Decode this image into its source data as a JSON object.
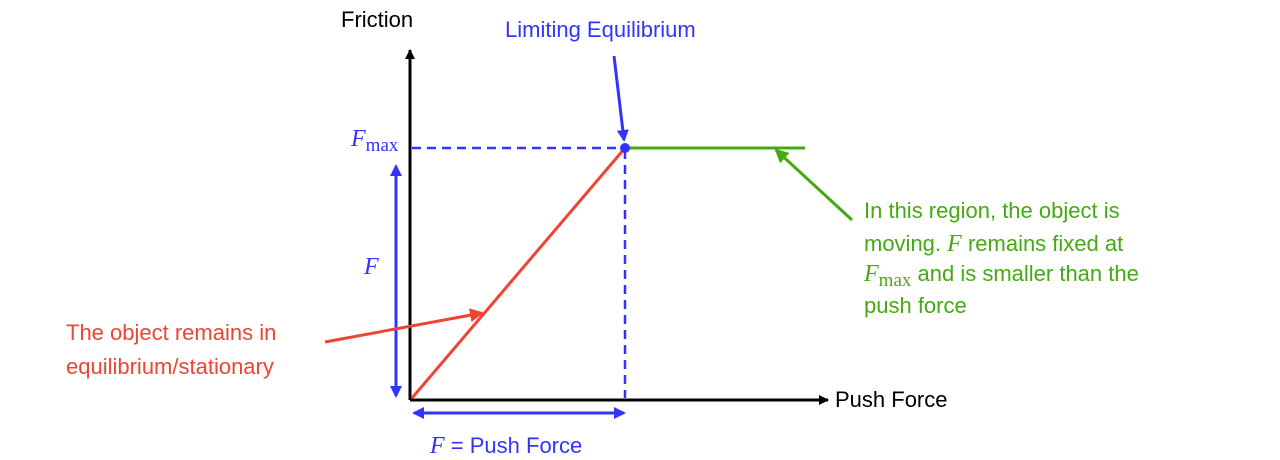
{
  "axes": {
    "y_label": "Friction",
    "x_label": "Push Force"
  },
  "annotations": {
    "limiting": "Limiting Equilibrium",
    "fmax_symbol": "F",
    "fmax_subscript": "max",
    "f_symbol": "F",
    "push_eq_symbol": "F",
    "push_eq_rest": " = Push Force",
    "static_line1": "The object remains in",
    "static_line2": "equilibrium/stationary",
    "moving_line1": "In this region, the object is",
    "moving_line2_pre": "moving. ",
    "moving_line2_sym": "F",
    "moving_line2_post": " remains fixed at",
    "moving_line3_sym": "F",
    "moving_line3_sub": "max",
    "moving_line3_post": " and is smaller than the",
    "moving_line4": "push force"
  },
  "colors": {
    "axis": "#000000",
    "blue": "#3333ff",
    "red": "#ee4433",
    "green": "#44aa11"
  }
}
